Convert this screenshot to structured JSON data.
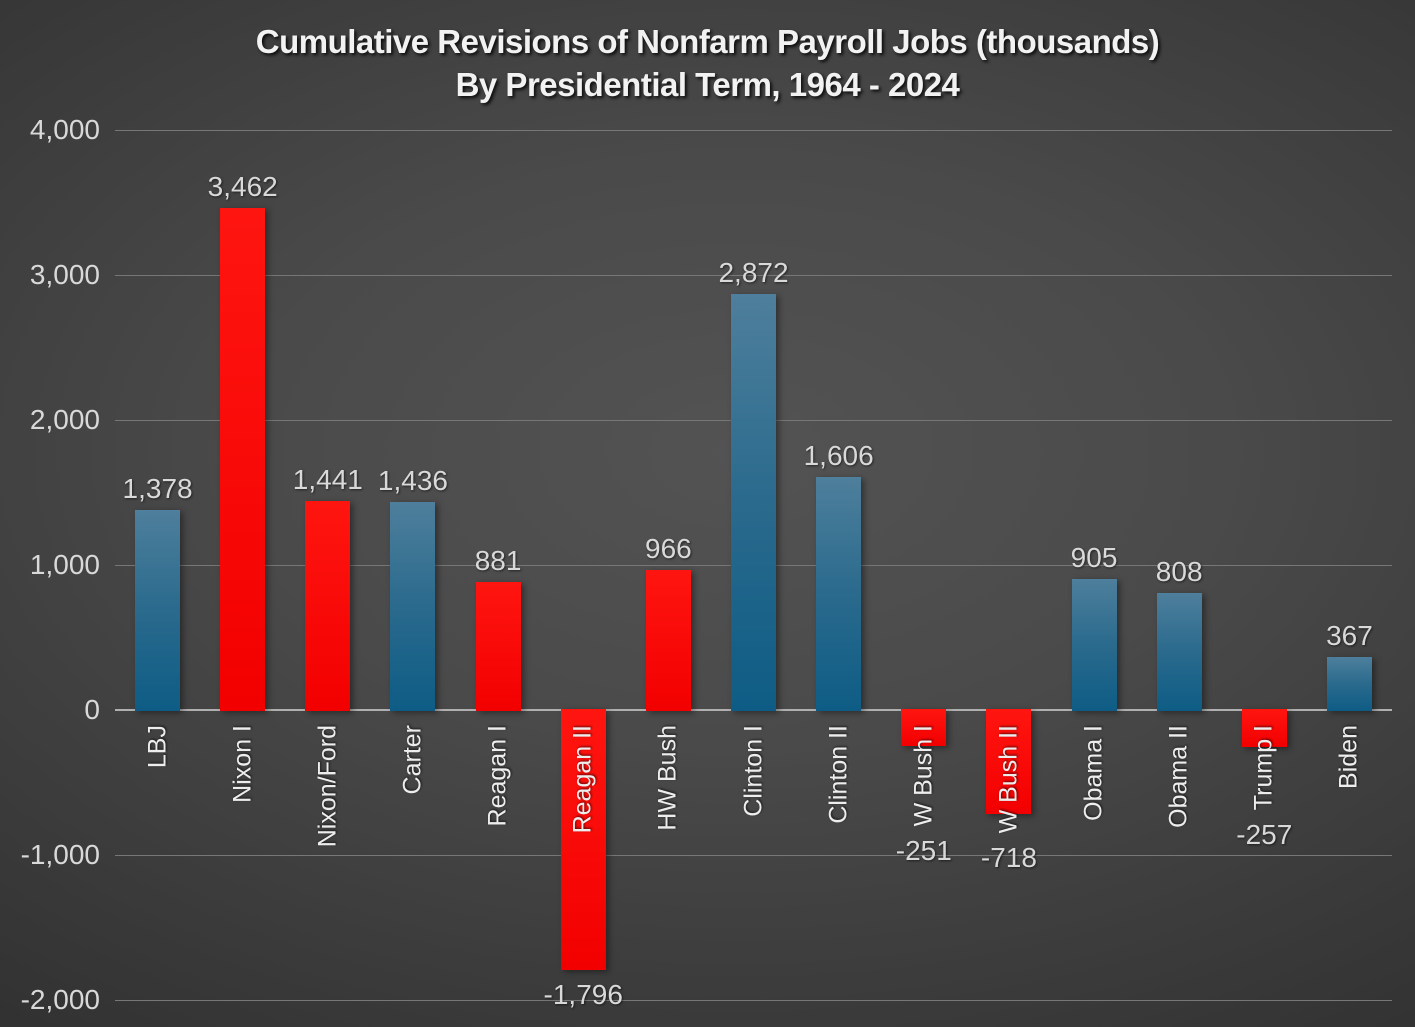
{
  "title": {
    "line1": "Cumulative Revisions of Nonfarm Payroll Jobs (thousands)",
    "line2": "By Presidential Term, 1964 - 2024"
  },
  "chart_data": {
    "type": "bar",
    "title": "Cumulative Revisions of Nonfarm Payroll Jobs (thousands) By Presidential Term, 1964 - 2024",
    "categories": [
      "LBJ",
      "Nixon I",
      "Nixon/Ford",
      "Carter",
      "Reagan I",
      "Reagan II",
      "HW Bush",
      "Clinton I",
      "Clinton II",
      "W Bush I",
      "W Bush II",
      "Obama I",
      "Obama II",
      "Trump I",
      "Biden"
    ],
    "values": [
      1378,
      3462,
      1441,
      1436,
      881,
      -1796,
      966,
      2872,
      1606,
      -251,
      -718,
      905,
      808,
      -257,
      367
    ],
    "value_labels": [
      "1,378",
      "3,462",
      "1,441",
      "1,436",
      "881",
      "-1,796",
      "966",
      "2,872",
      "1,606",
      "-251",
      "-718",
      "905",
      "808",
      "-257",
      "367"
    ],
    "party": [
      "D",
      "R",
      "R",
      "D",
      "R",
      "R",
      "R",
      "D",
      "D",
      "R",
      "R",
      "D",
      "D",
      "R",
      "D"
    ],
    "colors": {
      "D": "#1D6289",
      "R": "#FB0000",
      "D_gradient": [
        "#4E7F9C",
        "#2A6A8D",
        "#0E5C85"
      ],
      "R_gradient": [
        "#FF1510",
        "#F20000"
      ]
    },
    "xlabel": "",
    "ylabel": "",
    "ylim": [
      -2000,
      4000
    ],
    "ytick_values": [
      4000,
      3000,
      2000,
      1000,
      0,
      -1000,
      -2000
    ],
    "ytick_labels": [
      "4,000",
      "3,000",
      "2,000",
      "1,000",
      "0",
      "-1,000",
      "-2,000"
    ],
    "grid": true,
    "legend": "none",
    "background": {
      "center": "#515151",
      "edge": "#262626"
    },
    "gridline_color": "#777777",
    "axis_line_color": "#B0B0B0",
    "label_color": "#D9D9D9",
    "category_label_color": "#EDEDED"
  }
}
